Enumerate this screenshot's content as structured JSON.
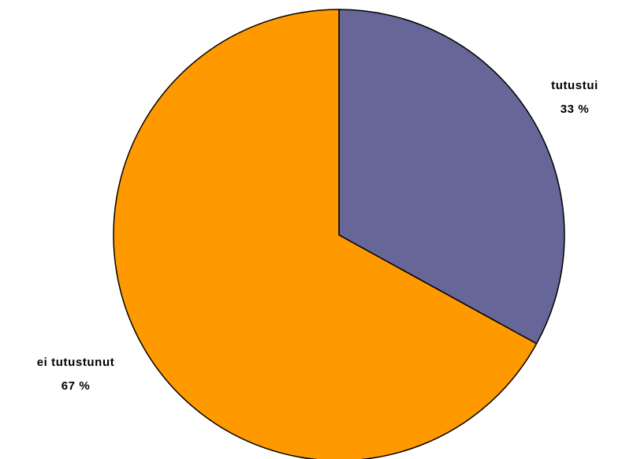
{
  "chart_data": {
    "type": "pie",
    "title": "",
    "slices": [
      {
        "label": "tutustui",
        "value": 33,
        "value_label": "33 %",
        "color": "#666699"
      },
      {
        "label": "ei tutustunut",
        "value": 67,
        "value_label": "67 %",
        "color": "#FF9900"
      }
    ],
    "start_angle": "12 o'clock",
    "direction": "clockwise",
    "legend": "none"
  }
}
